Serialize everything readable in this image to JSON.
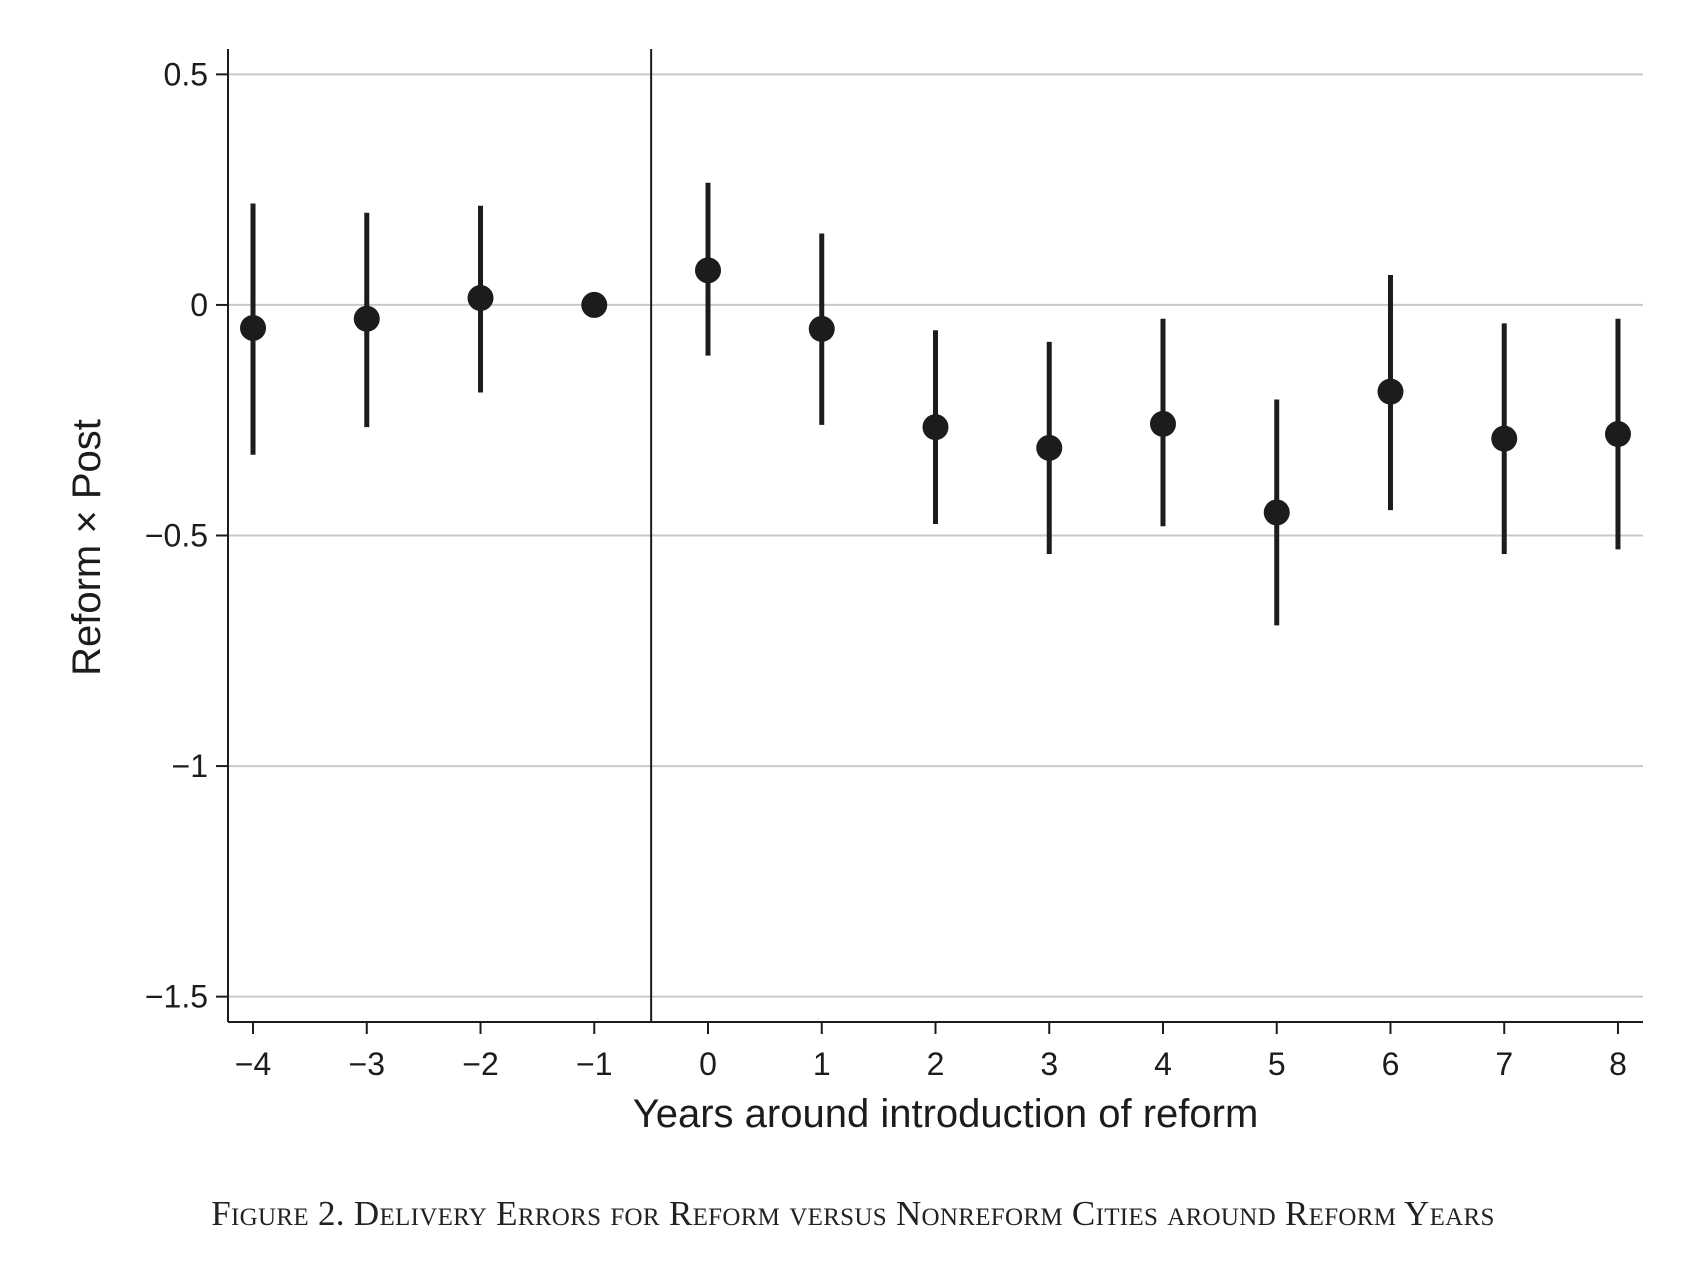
{
  "chart_data": {
    "type": "scatter",
    "subtype": "coefficient plot with confidence intervals",
    "x": [
      -4,
      -3,
      -2,
      -1,
      0,
      1,
      2,
      3,
      4,
      5,
      6,
      7,
      8
    ],
    "x_tick_labels": [
      "−4",
      "−3",
      "−2",
      "−1",
      "0",
      "1",
      "2",
      "3",
      "4",
      "5",
      "6",
      "7",
      "8"
    ],
    "y": [
      -0.05,
      -0.03,
      0.015,
      0.0,
      0.075,
      -0.052,
      -0.265,
      -0.31,
      -0.258,
      -0.45,
      -0.188,
      -0.29,
      -0.28
    ],
    "ci_low": [
      -0.325,
      -0.265,
      -0.19,
      null,
      -0.11,
      -0.26,
      -0.475,
      -0.54,
      -0.48,
      -0.695,
      -0.445,
      -0.54,
      -0.53
    ],
    "ci_high": [
      0.22,
      0.2,
      0.215,
      null,
      0.265,
      0.155,
      -0.055,
      -0.08,
      -0.03,
      -0.205,
      0.065,
      -0.04,
      -0.03
    ],
    "y_ticks": [
      0.5,
      0,
      -0.5,
      -1,
      -1.5
    ],
    "y_tick_labels": [
      "0.5",
      "0",
      "−0.5",
      "−1",
      "−1.5"
    ],
    "xlabel": "Years around introduction of reform",
    "ylabel": "Reform × Post",
    "xlim": [
      -4.22,
      8.22
    ],
    "ylim": [
      -1.555,
      0.555
    ],
    "reference_line_x": -0.5,
    "grid": "horizontal",
    "legend": "none",
    "marker_color": "#1c1c1c",
    "grid_color": "#c8c8c8"
  },
  "caption": "Figure 2. Delivery Errors for Reform versus Nonreform Cities around Reform Years"
}
